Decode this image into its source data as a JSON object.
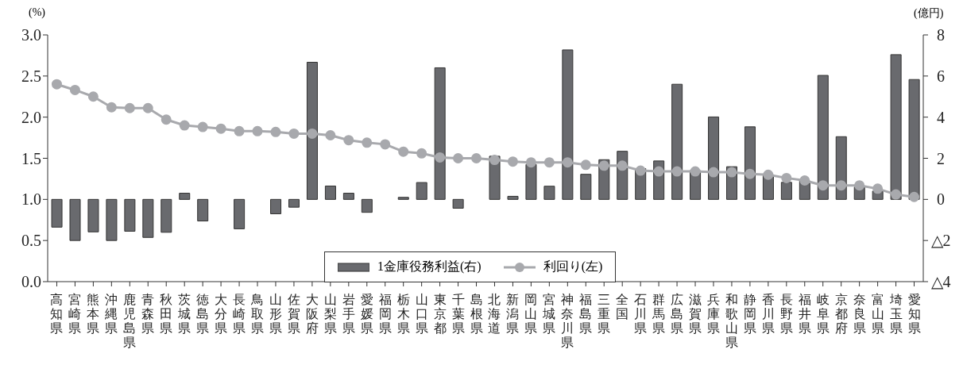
{
  "chart_data": {
    "type": "bar",
    "categories": [
      "高知県",
      "宮崎県",
      "熊本県",
      "沖縄県",
      "鹿児島県",
      "青森県",
      "秋田県",
      "茨城県",
      "徳島県",
      "大分県",
      "長崎県",
      "鳥取県",
      "山形県",
      "佐賀県",
      "大阪府",
      "山梨県",
      "岩手県",
      "愛媛県",
      "福岡県",
      "栃木県",
      "山口県",
      "東京都",
      "千葉県",
      "島根県",
      "北海道",
      "新潟県",
      "岡山県",
      "宮城県",
      "神奈川県",
      "福島県",
      "三重県",
      "全国",
      "石川県",
      "群馬県",
      "広島県",
      "滋賀県",
      "兵庫県",
      "和歌山県",
      "静岡県",
      "香川県",
      "長野県",
      "福井県",
      "岐阜県",
      "京都府",
      "奈良県",
      "富山県",
      "埼玉県",
      "愛知県"
    ],
    "series": [
      {
        "name": "1金庫役務利益(右)",
        "axis": "y2",
        "color": "#696a6e",
        "values": [
          -1.35,
          -2.0,
          -1.58,
          -2.0,
          -1.55,
          -1.85,
          -1.6,
          0.3,
          -1.05,
          0.0,
          -1.43,
          0.0,
          -0.7,
          -0.38,
          6.67,
          0.65,
          0.3,
          -0.63,
          0.0,
          0.1,
          0.82,
          6.4,
          -0.43,
          0.0,
          2.1,
          0.15,
          1.7,
          0.64,
          7.27,
          1.22,
          1.93,
          2.34,
          1.5,
          1.87,
          5.6,
          1.4,
          4.01,
          1.59,
          3.53,
          1.2,
          0.83,
          0.9,
          6.03,
          3.05,
          0.6,
          0.4,
          7.04,
          5.83
        ]
      },
      {
        "name": "利回り(左)",
        "type": "line",
        "color": "#a8a9ad",
        "marker": "circle",
        "values": [
          2.4,
          2.33,
          2.25,
          2.12,
          2.11,
          2.11,
          1.97,
          1.9,
          1.88,
          1.86,
          1.83,
          1.83,
          1.82,
          1.8,
          1.8,
          1.78,
          1.72,
          1.69,
          1.67,
          1.58,
          1.56,
          1.51,
          1.5,
          1.5,
          1.48,
          1.46,
          1.45,
          1.45,
          1.45,
          1.42,
          1.41,
          1.41,
          1.35,
          1.34,
          1.34,
          1.34,
          1.33,
          1.33,
          1.31,
          1.3,
          1.26,
          1.23,
          1.17,
          1.17,
          1.17,
          1.13,
          1.06,
          1.03
        ]
      }
    ],
    "ylabel": "(%)",
    "y2label": "(億円)",
    "ylim": [
      0,
      3
    ],
    "yticks": [
      {
        "value": 0,
        "label": "0.0"
      },
      0.5,
      {
        "value": 1,
        "label": "1.0"
      },
      1.5,
      {
        "value": 2,
        "label": "2.0"
      },
      2.5,
      {
        "value": 3,
        "label": "3.0"
      }
    ],
    "y2lim": [
      -4,
      8
    ],
    "y2ticks": [
      {
        "value": -4,
        "label": "△4"
      },
      {
        "value": -2,
        "label": "△2"
      },
      0,
      2,
      4,
      6,
      8
    ],
    "legend": "bottom",
    "grid": false
  }
}
